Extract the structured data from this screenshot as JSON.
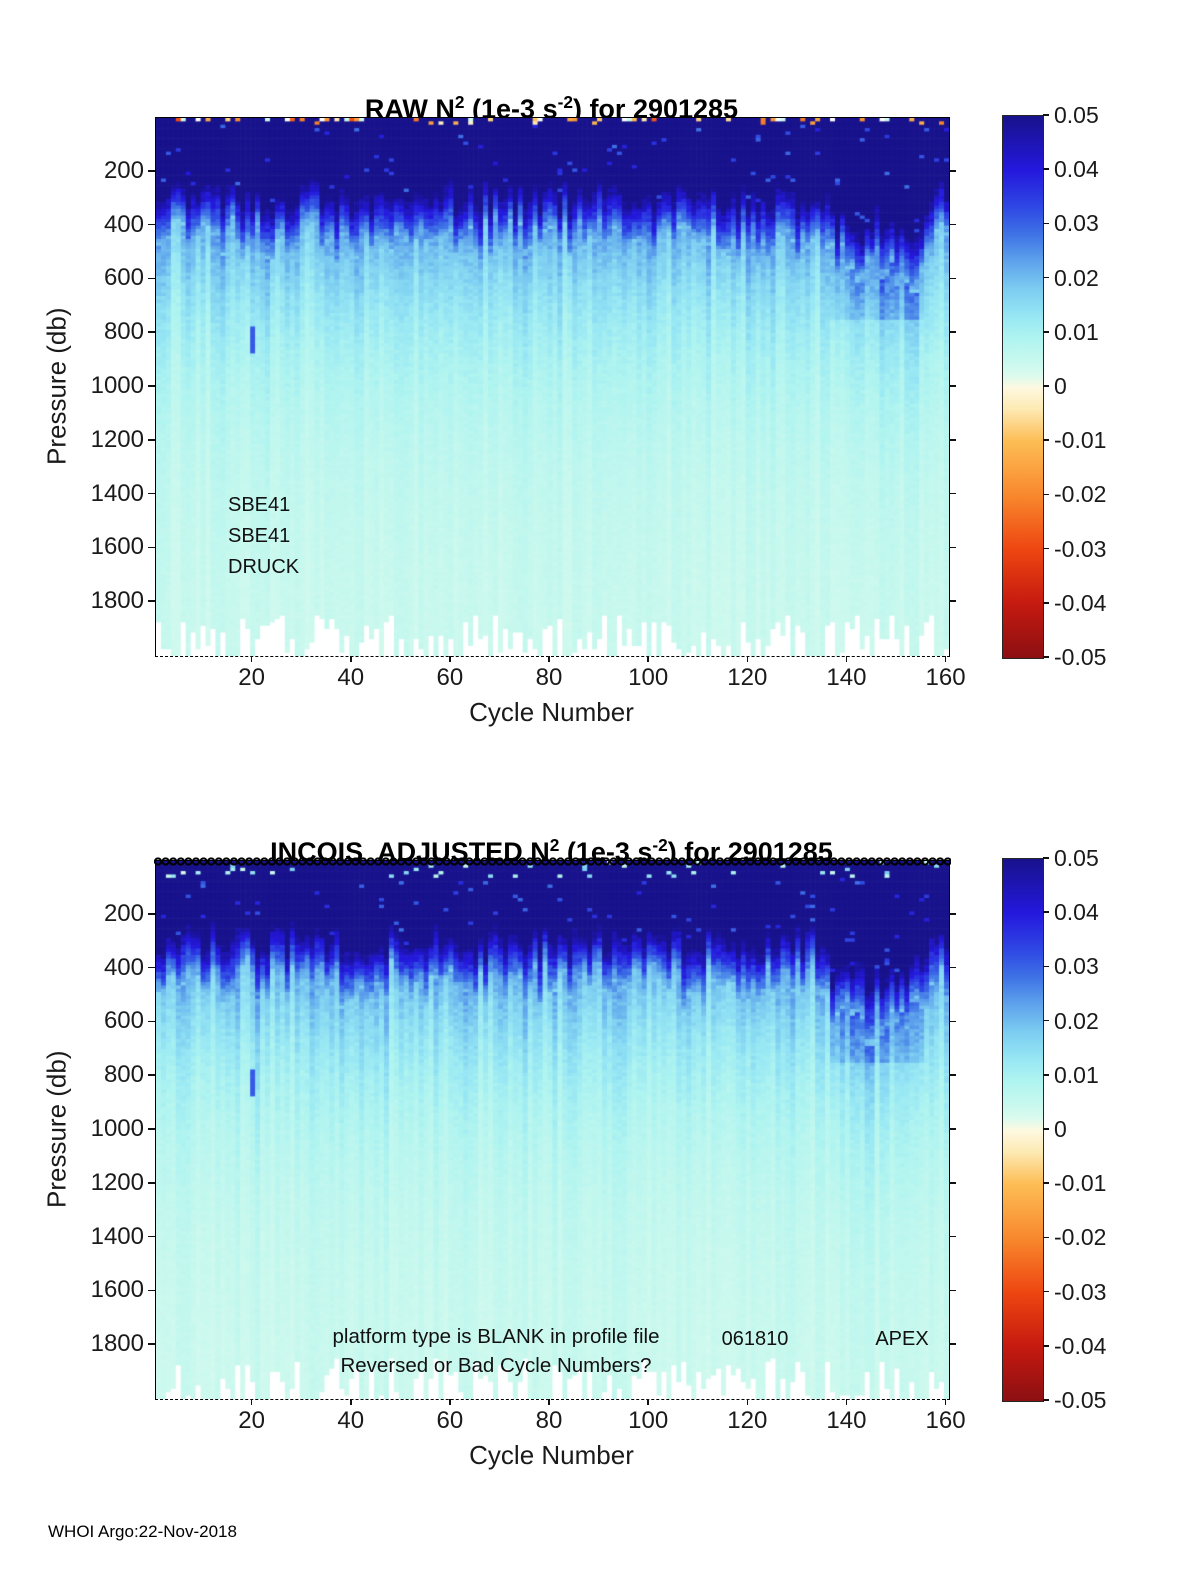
{
  "figure": {
    "footer": "WHOI Argo:22-Nov-2018",
    "background": "#ffffff",
    "text_color": "#1a1a1a"
  },
  "colorbar": {
    "range": [
      -0.05,
      0.05
    ],
    "tick_labels": [
      "0.05",
      "0.04",
      "0.03",
      "0.02",
      "0.01",
      "0",
      "-0.01",
      "-0.02",
      "-0.03",
      "-0.04",
      "-0.05"
    ],
    "stops": [
      {
        "v": 0.05,
        "c": "#18128c"
      },
      {
        "v": 0.04,
        "c": "#2418dd"
      },
      {
        "v": 0.033,
        "c": "#2f49e4"
      },
      {
        "v": 0.028,
        "c": "#3f74e6"
      },
      {
        "v": 0.023,
        "c": "#5fa4ec"
      },
      {
        "v": 0.018,
        "c": "#7ccdf1"
      },
      {
        "v": 0.013,
        "c": "#97e7f4"
      },
      {
        "v": 0.009,
        "c": "#aff4f0"
      },
      {
        "v": 0.005,
        "c": "#c6f8ee"
      },
      {
        "v": 0.002,
        "c": "#dcfbee"
      },
      {
        "v": 0.0,
        "c": "#fdf9e1"
      },
      {
        "v": -0.004,
        "c": "#fdeab4"
      },
      {
        "v": -0.01,
        "c": "#fdbd55"
      },
      {
        "v": -0.02,
        "c": "#f8882d"
      },
      {
        "v": -0.03,
        "c": "#ee4611"
      },
      {
        "v": -0.04,
        "c": "#c51a10"
      },
      {
        "v": -0.05,
        "c": "#8c0f12"
      }
    ]
  },
  "chart_data": [
    {
      "type": "heatmap",
      "title": "RAW N^2 (1e-3 s^-2) for 2901285",
      "title_parts": {
        "prefix": "RAW N",
        "sup1": "2",
        "mid": " (1e-3 s",
        "sup2": "-2",
        "suffix": ") for 2901285"
      },
      "xlabel": "Cycle Number",
      "ylabel": "Pressure (db)",
      "x_range": [
        1,
        160
      ],
      "y_range_db": [
        0,
        2000
      ],
      "x_ticks": [
        20,
        40,
        60,
        80,
        100,
        120,
        140,
        160
      ],
      "y_ticks": [
        200,
        400,
        600,
        800,
        1000,
        1200,
        1400,
        1600,
        1800
      ],
      "colorbar_range": [
        -0.05,
        0.05
      ],
      "annotations": {
        "sensor_lines": [
          "SBE41",
          "SBE41",
          "DRUCK"
        ]
      },
      "depth_profile_typical_n2_1e3": [
        {
          "depth_min": 0,
          "depth_max": 20,
          "n2": 0.05,
          "note": "scattered warm anomalies -0.003 to -0.03 at surface"
        },
        {
          "depth_min": 20,
          "depth_max": 300,
          "n2": 0.05
        },
        {
          "depth_min": 300,
          "depth_max": 460,
          "n2_from": 0.05,
          "n2_to": 0.02
        },
        {
          "depth_min": 460,
          "depth_max": 700,
          "n2_from": 0.02,
          "n2_to": 0.013
        },
        {
          "depth_min": 700,
          "depth_max": 1100,
          "n2_from": 0.013,
          "n2_to": 0.008
        },
        {
          "depth_min": 1100,
          "depth_max": 1600,
          "n2_from": 0.008,
          "n2_to": 0.005
        },
        {
          "depth_min": 1600,
          "depth_max": 2000,
          "n2_from": 0.005,
          "n2_to": 0.004
        }
      ],
      "features": [
        {
          "cycle": 20,
          "depth_db": 820,
          "n2": 0.031,
          "desc": "isolated high-N2 streak"
        },
        {
          "cycles": [
            136,
            154
          ],
          "desc": "mixed layer / thermocline deepens to ~450-500 db"
        },
        {
          "desc": "white missing-data gaps below ~1850 db for many cycles"
        }
      ],
      "render": {
        "seed": 20285,
        "surface_warm": true,
        "cycle_markers": false,
        "thermocline_db": 290,
        "thermocline_jitter_db": 130,
        "transition_width_db": 170,
        "deep_floor": 0.004,
        "deep_amp": 0.016,
        "deep_scale_db": 400,
        "deep_dip_cycles": [
          136,
          154
        ],
        "missing_below_db": 1848,
        "anomaly": {
          "cycle": 20,
          "from_db": 780,
          "to_db": 870,
          "n2": 0.031
        }
      }
    },
    {
      "type": "heatmap",
      "title": "INCOIS  ADJUSTED N^2 (1e-3 s^-2) for 2901285",
      "title_parts": {
        "prefix": "INCOIS  ADJUSTED N",
        "sup1": "2",
        "mid": " (1e-3 s",
        "sup2": "-2",
        "suffix": ") for 2901285"
      },
      "xlabel": "Cycle Number",
      "ylabel": "Pressure (db)",
      "x_range": [
        1,
        160
      ],
      "y_range_db": [
        0,
        2000
      ],
      "x_ticks": [
        20,
        40,
        60,
        80,
        100,
        120,
        140,
        160
      ],
      "y_ticks": [
        200,
        400,
        600,
        800,
        1000,
        1200,
        1400,
        1600,
        1800
      ],
      "colorbar_range": [
        -0.05,
        0.05
      ],
      "annotations": {
        "warning_lines": [
          "platform type is BLANK in profile file",
          "Reversed or Bad Cycle Numbers?"
        ],
        "float_serial": "061810",
        "platform_type": "APEX"
      },
      "cycle_marker_row": "black circle marker for every cycle along the surface (0 db)",
      "depth_profile_typical_n2_1e3": [
        {
          "depth_min": 0,
          "depth_max": 300,
          "n2": 0.05
        },
        {
          "depth_min": 300,
          "depth_max": 460,
          "n2_from": 0.05,
          "n2_to": 0.02
        },
        {
          "depth_min": 460,
          "depth_max": 700,
          "n2_from": 0.02,
          "n2_to": 0.013
        },
        {
          "depth_min": 700,
          "depth_max": 1100,
          "n2_from": 0.013,
          "n2_to": 0.008
        },
        {
          "depth_min": 1100,
          "depth_max": 1600,
          "n2_from": 0.008,
          "n2_to": 0.005
        },
        {
          "depth_min": 1600,
          "depth_max": 2000,
          "n2_from": 0.005,
          "n2_to": 0.004
        }
      ],
      "features": [
        {
          "cycle": 20,
          "depth_db": 820,
          "n2": 0.031,
          "desc": "isolated high-N2 streak"
        },
        {
          "cycles": [
            136,
            154
          ],
          "desc": "mixed layer / thermocline deepens to ~450-500 db"
        },
        {
          "desc": "white missing-data gaps below ~1850 db for many cycles"
        }
      ],
      "render": {
        "seed": 77421,
        "surface_warm": false,
        "cycle_markers": true,
        "thermocline_db": 290,
        "thermocline_jitter_db": 130,
        "transition_width_db": 170,
        "deep_floor": 0.004,
        "deep_amp": 0.016,
        "deep_scale_db": 400,
        "deep_dip_cycles": [
          136,
          154
        ],
        "missing_below_db": 1848,
        "anomaly": {
          "cycle": 20,
          "from_db": 780,
          "to_db": 870,
          "n2": 0.031
        }
      }
    }
  ]
}
